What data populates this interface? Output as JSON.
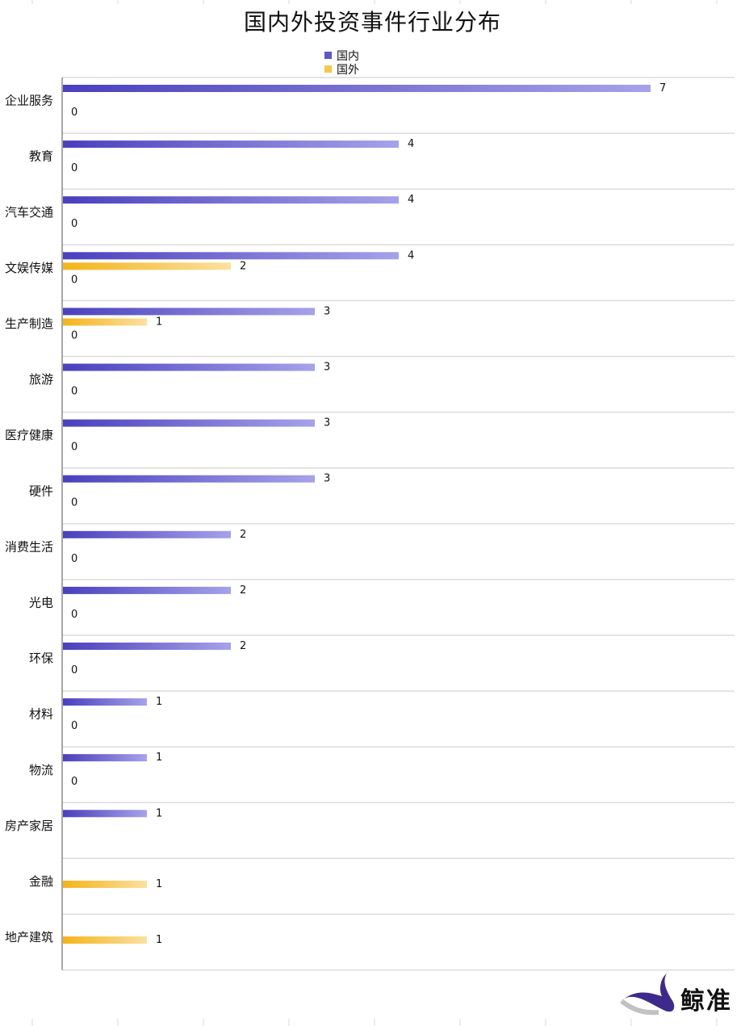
{
  "title": "国内外投资事件行业分布",
  "brand": "鲸准",
  "colors": {
    "domestic_start": "#4a3fbd",
    "domestic_end": "#a6a2ea",
    "foreign_start": "#f4b41a",
    "foreign_end": "#fbe0a0"
  },
  "legend": [
    {
      "label": "国内",
      "color": "#5f56cc"
    },
    {
      "label": "国外",
      "color": "#f6c74a"
    }
  ],
  "chart_data": {
    "type": "bar",
    "orientation": "horizontal",
    "title": "国内外投资事件行业分布",
    "categories": [
      "企业服务",
      "教育",
      "汽车交通",
      "文娱传媒",
      "生产制造",
      "旅游",
      "医疗健康",
      "硬件",
      "消费生活",
      "光电",
      "环保",
      "材料",
      "物流",
      "房产家居",
      "金融",
      "地产建筑"
    ],
    "series": [
      {
        "name": "国内",
        "values": [
          7,
          4,
          4,
          4,
          3,
          3,
          3,
          3,
          2,
          2,
          2,
          1,
          1,
          1,
          null,
          null
        ]
      },
      {
        "name": "国外",
        "values": [
          null,
          null,
          null,
          2,
          1,
          null,
          null,
          null,
          null,
          null,
          null,
          null,
          null,
          null,
          1,
          1
        ]
      }
    ],
    "extra_labels": [
      "0",
      "0",
      "0",
      "0",
      "0",
      "0",
      "0",
      "0",
      "0",
      "0",
      "0",
      "0",
      "0",
      null,
      null,
      null
    ],
    "xlim": [
      0,
      8
    ],
    "grid": true,
    "legend_position": "top"
  }
}
